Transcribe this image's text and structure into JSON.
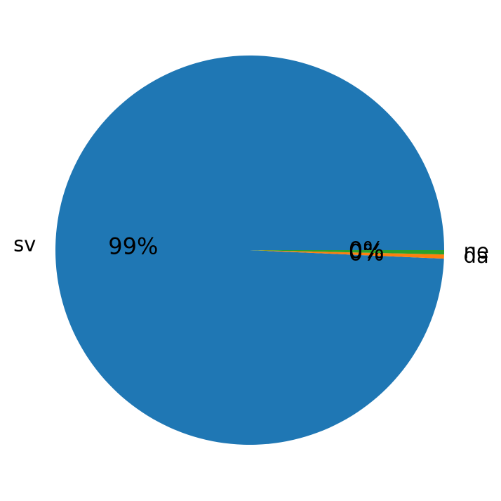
{
  "chart_data": {
    "type": "pie",
    "categories": [
      "sv",
      "da",
      "ne"
    ],
    "values": [
      99.3,
      0.35,
      0.35
    ],
    "value_labels": [
      "99%",
      "0%",
      "0%"
    ],
    "colors": [
      "#1f77b4",
      "#ff7f0e",
      "#2ca02c"
    ]
  }
}
